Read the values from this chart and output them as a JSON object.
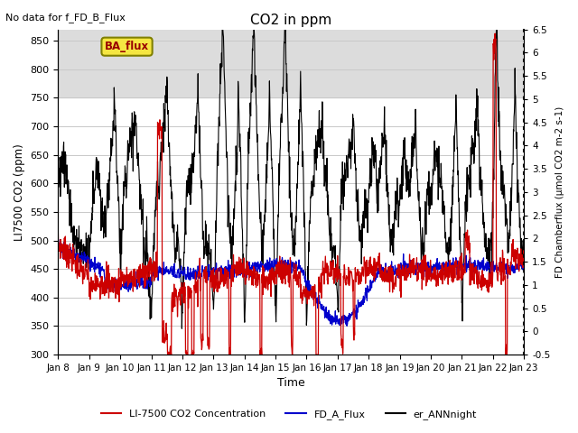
{
  "title": "CO2 in ppm",
  "top_left_text": "No data for f_FD_B_Flux",
  "ba_flux_label": "BA_flux",
  "xlabel": "Time",
  "ylabel_left": "LI7500 CO2 (ppm)",
  "ylabel_right": "FD Chamberflux (μmol CO2 m-2 s-1)",
  "ylim_left": [
    300,
    870
  ],
  "ylim_right": [
    -0.5,
    6.5
  ],
  "yticks_left": [
    300,
    350,
    400,
    450,
    500,
    550,
    600,
    650,
    700,
    750,
    800,
    850
  ],
  "yticks_right": [
    -0.5,
    0.0,
    0.5,
    1.0,
    1.5,
    2.0,
    2.5,
    3.0,
    3.5,
    4.0,
    4.5,
    5.0,
    5.5,
    6.0,
    6.5
  ],
  "xticklabels": [
    "Jan 8",
    "Jan 9",
    "Jan 10",
    "Jan 11",
    "Jan 12",
    "Jan 13",
    "Jan 14",
    "Jan 15",
    "Jan 16",
    "Jan 17",
    "Jan 18",
    "Jan 19",
    "Jan 20",
    "Jan 21",
    "Jan 22",
    "Jan 23"
  ],
  "legend_entries": [
    {
      "label": "LI-7500 CO2 Concentration",
      "color": "#cc0000",
      "lw": 1.5
    },
    {
      "label": "FD_A_Flux",
      "color": "#0000cc",
      "lw": 1.5
    },
    {
      "label": "er_ANNnight",
      "color": "#000000",
      "lw": 1.5
    }
  ],
  "background_band": {
    "ymin": 750,
    "ymax": 870,
    "color": "#dcdcdc"
  },
  "colors": {
    "red": "#cc0000",
    "blue": "#0000cc",
    "black": "#000000",
    "ba_flux_bg": "#f5e642",
    "ba_flux_border": "#808000"
  },
  "figsize": [
    6.4,
    4.8
  ],
  "dpi": 100
}
